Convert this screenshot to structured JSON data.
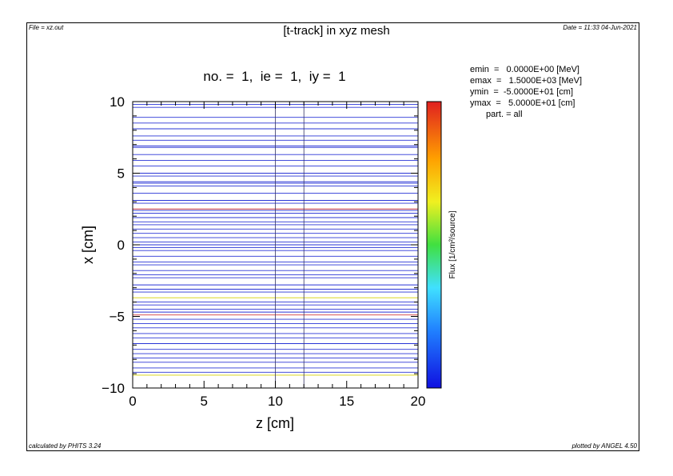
{
  "header": {
    "file": "File = xz.out",
    "date": "Date = 11:33 04-Jun-2021"
  },
  "footer": {
    "calc": "calculated by PHITS 3.24",
    "plot": "plotted by ANGEL 4.50"
  },
  "info": {
    "emin": "emin  =   0.0000E+00 [MeV]",
    "emax": "emax  =   1.5000E+03 [MeV]",
    "ymin": "ymin  =  -5.0000E+01 [cm]",
    "ymax": "ymax  =   5.0000E+01 [cm]",
    "part": "part. = all"
  },
  "colors": {
    "track_blue": "#2a35d6",
    "track_red": "#d23c3c",
    "track_yellow": "#d6d000",
    "track_green": "#3caa3c",
    "axis": "#000000"
  },
  "chart_data": {
    "type": "heatmap",
    "title": "[t-track] in xyz mesh",
    "subtitle": "no. =  1,  ie =  1,  iy =  1",
    "xlabel": "z [cm]",
    "ylabel": "x [cm]",
    "xlim": [
      0,
      20
    ],
    "ylim": [
      -10,
      10
    ],
    "x_ticks": [
      0,
      5,
      10,
      15,
      20
    ],
    "x_tick_labels": [
      "0",
      "5",
      "10",
      "15",
      "20"
    ],
    "y_ticks": [
      -10,
      -5,
      0,
      5,
      10
    ],
    "y_tick_labels": [
      "−10",
      "−5",
      "0",
      "5",
      "10"
    ],
    "colorbar_label": "Flux [1/cm²/source]",
    "vertical_lines_z": [
      10,
      12
    ],
    "tracks": [
      {
        "x": 9.8,
        "color": "blue"
      },
      {
        "x": 9.6,
        "color": "blue"
      },
      {
        "x": 8.9,
        "color": "blue"
      },
      {
        "x": 8.5,
        "color": "blue"
      },
      {
        "x": 8.1,
        "color": "blue"
      },
      {
        "x": 7.6,
        "color": "blue"
      },
      {
        "x": 7.3,
        "color": "blue"
      },
      {
        "x": 6.9,
        "color": "blue"
      },
      {
        "x": 6.8,
        "color": "blue"
      },
      {
        "x": 6.3,
        "color": "blue"
      },
      {
        "x": 5.9,
        "color": "blue"
      },
      {
        "x": 5.5,
        "color": "blue"
      },
      {
        "x": 5.0,
        "color": "blue"
      },
      {
        "x": 4.8,
        "color": "blue"
      },
      {
        "x": 4.4,
        "color": "blue"
      },
      {
        "x": 4.3,
        "color": "blue"
      },
      {
        "x": 4.1,
        "color": "blue"
      },
      {
        "x": 3.6,
        "color": "blue"
      },
      {
        "x": 3.1,
        "color": "blue"
      },
      {
        "x": 2.9,
        "color": "blue"
      },
      {
        "x": 2.5,
        "color": "red"
      },
      {
        "x": 2.4,
        "color": "blue"
      },
      {
        "x": 2.2,
        "color": "blue"
      },
      {
        "x": 1.9,
        "color": "blue"
      },
      {
        "x": 1.6,
        "color": "blue"
      },
      {
        "x": 1.4,
        "color": "blue"
      },
      {
        "x": 1.1,
        "color": "blue"
      },
      {
        "x": 0.8,
        "color": "blue"
      },
      {
        "x": 0.5,
        "color": "blue"
      },
      {
        "x": 0.2,
        "color": "blue"
      },
      {
        "x": 0.0,
        "color": "blue"
      },
      {
        "x": -0.2,
        "color": "blue"
      },
      {
        "x": -0.4,
        "color": "blue"
      },
      {
        "x": -0.8,
        "color": "blue"
      },
      {
        "x": -1.2,
        "color": "blue"
      },
      {
        "x": -1.4,
        "color": "blue"
      },
      {
        "x": -1.8,
        "color": "blue"
      },
      {
        "x": -2.1,
        "color": "blue"
      },
      {
        "x": -2.3,
        "color": "blue"
      },
      {
        "x": -2.8,
        "color": "blue"
      },
      {
        "x": -3.1,
        "color": "blue"
      },
      {
        "x": -3.3,
        "color": "blue"
      },
      {
        "x": -3.7,
        "color": "yellow"
      },
      {
        "x": -4.0,
        "color": "blue"
      },
      {
        "x": -4.2,
        "color": "blue"
      },
      {
        "x": -4.5,
        "color": "blue"
      },
      {
        "x": -4.7,
        "color": "blue"
      },
      {
        "x": -4.9,
        "color": "red"
      },
      {
        "x": -5.2,
        "color": "blue"
      },
      {
        "x": -5.5,
        "color": "blue"
      },
      {
        "x": -5.8,
        "color": "blue"
      },
      {
        "x": -6.2,
        "color": "blue"
      },
      {
        "x": -6.5,
        "color": "blue"
      },
      {
        "x": -6.9,
        "color": "blue"
      },
      {
        "x": -7.3,
        "color": "blue"
      },
      {
        "x": -7.6,
        "color": "blue"
      },
      {
        "x": -7.9,
        "color": "blue"
      },
      {
        "x": -8.2,
        "color": "blue"
      },
      {
        "x": -8.6,
        "color": "blue"
      },
      {
        "x": -8.9,
        "color": "blue"
      },
      {
        "x": -9.1,
        "color": "yellow"
      }
    ]
  }
}
